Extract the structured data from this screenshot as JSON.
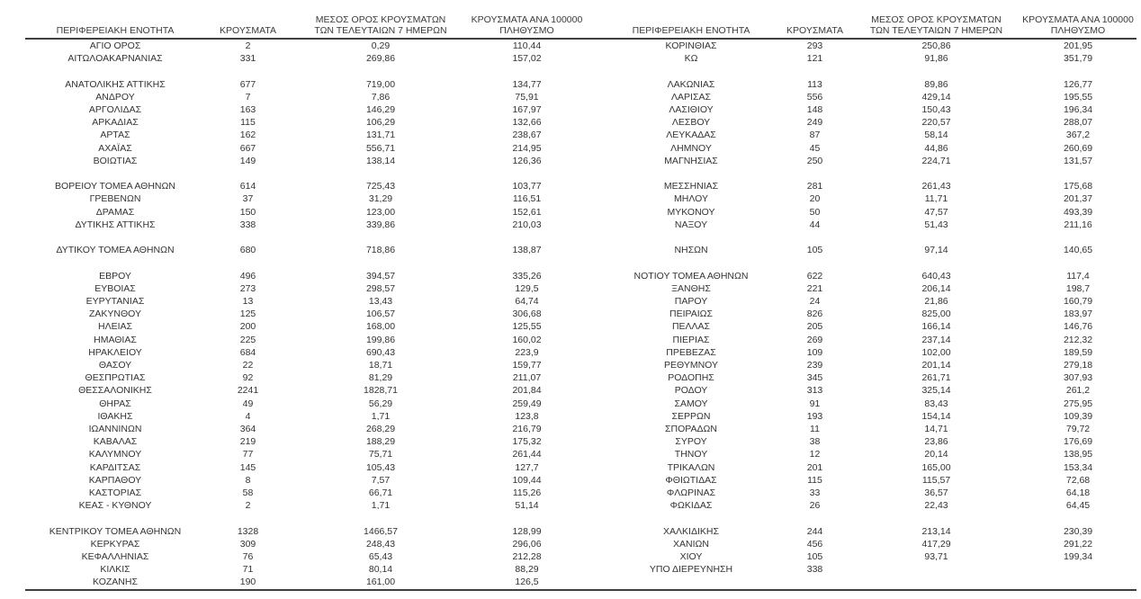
{
  "table": {
    "headers": {
      "region": "ΠΕΡΙΦΕΡΕΙΑΚΗ ΕΝΟΤΗΤΑ",
      "cases": "ΚΡΟΥΣΜΑΤΑ",
      "avg7_line1": "ΜΕΣΟΣ ΟΡΟΣ ΚΡΟΥΣΜΑΤΩΝ",
      "avg7_line2": "ΤΩΝ ΤΕΛΕΥΤΑΙΩΝ 7 ΗΜΕΡΩΝ",
      "per100k_line1": "ΚΡΟΥΣΜΑΤΑ ΑΝΑ 100000",
      "per100k_line2": "ΠΛΗΘΥΣΜΟ"
    },
    "rows": [
      {
        "l": [
          "ΑΓΙΟ ΟΡΟΣ",
          "2",
          "0,29",
          "110,44"
        ],
        "r": [
          "ΚΟΡΙΝΘΙΑΣ",
          "293",
          "250,86",
          "201,95"
        ]
      },
      {
        "l": [
          "ΑΙΤΩΛΟΑΚΑΡΝΑΝΙΑΣ",
          "331",
          "269,86",
          "157,02"
        ],
        "r": [
          "ΚΩ",
          "121",
          "91,86",
          "351,79"
        ]
      },
      {
        "l": null,
        "r": null
      },
      {
        "l": [
          "ΑΝΑΤΟΛΙΚΗΣ ΑΤΤΙΚΗΣ",
          "677",
          "719,00",
          "134,77"
        ],
        "r": [
          "ΛΑΚΩΝΙΑΣ",
          "113",
          "89,86",
          "126,77"
        ]
      },
      {
        "l": [
          "ΑΝΔΡΟΥ",
          "7",
          "7,86",
          "75,91"
        ],
        "r": [
          "ΛΑΡΙΣΑΣ",
          "556",
          "429,14",
          "195,55"
        ]
      },
      {
        "l": [
          "ΑΡΓΟΛΙΔΑΣ",
          "163",
          "146,29",
          "167,97"
        ],
        "r": [
          "ΛΑΣΙΘΙΟΥ",
          "148",
          "150,43",
          "196,34"
        ]
      },
      {
        "l": [
          "ΑΡΚΑΔΙΑΣ",
          "115",
          "106,29",
          "132,66"
        ],
        "r": [
          "ΛΕΣΒΟΥ",
          "249",
          "220,57",
          "288,07"
        ]
      },
      {
        "l": [
          "ΑΡΤΑΣ",
          "162",
          "131,71",
          "238,67"
        ],
        "r": [
          "ΛΕΥΚΑΔΑΣ",
          "87",
          "58,14",
          "367,2"
        ]
      },
      {
        "l": [
          "ΑΧΑΪΑΣ",
          "667",
          "556,71",
          "214,95"
        ],
        "r": [
          "ΛΗΜΝΟΥ",
          "45",
          "44,86",
          "260,69"
        ]
      },
      {
        "l": [
          "ΒΟΙΩΤΙΑΣ",
          "149",
          "138,14",
          "126,36"
        ],
        "r": [
          "ΜΑΓΝΗΣΙΑΣ",
          "250",
          "224,71",
          "131,57"
        ]
      },
      {
        "l": null,
        "r": null
      },
      {
        "l": [
          "ΒΟΡΕΙΟΥ ΤΟΜΕΑ ΑΘΗΝΩΝ",
          "614",
          "725,43",
          "103,77"
        ],
        "r": [
          "ΜΕΣΣΗΝΙΑΣ",
          "281",
          "261,43",
          "175,68"
        ]
      },
      {
        "l": [
          "ΓΡΕΒΕΝΩΝ",
          "37",
          "31,29",
          "116,51"
        ],
        "r": [
          "ΜΗΛΟΥ",
          "20",
          "11,71",
          "201,37"
        ]
      },
      {
        "l": [
          "ΔΡΑΜΑΣ",
          "150",
          "123,00",
          "152,61"
        ],
        "r": [
          "ΜΥΚΟΝΟΥ",
          "50",
          "47,57",
          "493,39"
        ]
      },
      {
        "l": [
          "ΔΥΤΙΚΗΣ ΑΤΤΙΚΗΣ",
          "338",
          "339,86",
          "210,03"
        ],
        "r": [
          "ΝΑΞΟΥ",
          "44",
          "51,43",
          "211,16"
        ]
      },
      {
        "l": null,
        "r": null
      },
      {
        "l": [
          "ΔΥΤΙΚΟΥ ΤΟΜΕΑ ΑΘΗΝΩΝ",
          "680",
          "718,86",
          "138,87"
        ],
        "r": [
          "ΝΗΣΩΝ",
          "105",
          "97,14",
          "140,65"
        ]
      },
      {
        "l": null,
        "r": null
      },
      {
        "l": [
          "ΕΒΡΟΥ",
          "496",
          "394,57",
          "335,26"
        ],
        "r": [
          "ΝΟΤΙΟΥ ΤΟΜΕΑ ΑΘΗΝΩΝ",
          "622",
          "640,43",
          "117,4"
        ]
      },
      {
        "l": [
          "ΕΥΒΟΙΑΣ",
          "273",
          "298,57",
          "129,5"
        ],
        "r": [
          "ΞΑΝΘΗΣ",
          "221",
          "206,14",
          "198,7"
        ]
      },
      {
        "l": [
          "ΕΥΡΥΤΑΝΙΑΣ",
          "13",
          "13,43",
          "64,74"
        ],
        "r": [
          "ΠΑΡΟΥ",
          "24",
          "21,86",
          "160,79"
        ]
      },
      {
        "l": [
          "ΖΑΚΥΝΘΟΥ",
          "125",
          "106,57",
          "306,68"
        ],
        "r": [
          "ΠΕΙΡΑΙΩΣ",
          "826",
          "825,00",
          "183,97"
        ]
      },
      {
        "l": [
          "ΗΛΕΙΑΣ",
          "200",
          "168,00",
          "125,55"
        ],
        "r": [
          "ΠΕΛΛΑΣ",
          "205",
          "166,14",
          "146,76"
        ]
      },
      {
        "l": [
          "ΗΜΑΘΙΑΣ",
          "225",
          "199,86",
          "160,02"
        ],
        "r": [
          "ΠΙΕΡΙΑΣ",
          "269",
          "237,14",
          "212,32"
        ]
      },
      {
        "l": [
          "ΗΡΑΚΛΕΙΟΥ",
          "684",
          "690,43",
          "223,9"
        ],
        "r": [
          "ΠΡΕΒΕΖΑΣ",
          "109",
          "102,00",
          "189,59"
        ]
      },
      {
        "l": [
          "ΘΑΣΟΥ",
          "22",
          "18,71",
          "159,77"
        ],
        "r": [
          "ΡΕΘΥΜΝΟΥ",
          "239",
          "201,14",
          "279,18"
        ]
      },
      {
        "l": [
          "ΘΕΣΠΡΩΤΙΑΣ",
          "92",
          "81,29",
          "211,07"
        ],
        "r": [
          "ΡΟΔΟΠΗΣ",
          "345",
          "261,71",
          "307,93"
        ]
      },
      {
        "l": [
          "ΘΕΣΣΑΛΟΝΙΚΗΣ",
          "2241",
          "1828,71",
          "201,84"
        ],
        "r": [
          "ΡΟΔΟΥ",
          "313",
          "325,14",
          "261,2"
        ]
      },
      {
        "l": [
          "ΘΗΡΑΣ",
          "49",
          "56,29",
          "259,49"
        ],
        "r": [
          "ΣΑΜΟΥ",
          "91",
          "83,43",
          "275,95"
        ]
      },
      {
        "l": [
          "ΙΘΑΚΗΣ",
          "4",
          "1,71",
          "123,8"
        ],
        "r": [
          "ΣΕΡΡΩΝ",
          "193",
          "154,14",
          "109,39"
        ]
      },
      {
        "l": [
          "ΙΩΑΝΝΙΝΩΝ",
          "364",
          "268,29",
          "216,79"
        ],
        "r": [
          "ΣΠΟΡΑΔΩΝ",
          "11",
          "14,71",
          "79,72"
        ]
      },
      {
        "l": [
          "ΚΑΒΑΛΑΣ",
          "219",
          "188,29",
          "175,32"
        ],
        "r": [
          "ΣΥΡΟΥ",
          "38",
          "23,86",
          "176,69"
        ]
      },
      {
        "l": [
          "ΚΑΛΥΜΝΟΥ",
          "77",
          "75,71",
          "261,44"
        ],
        "r": [
          "ΤΗΝΟΥ",
          "12",
          "20,14",
          "138,95"
        ]
      },
      {
        "l": [
          "ΚΑΡΔΙΤΣΑΣ",
          "145",
          "105,43",
          "127,7"
        ],
        "r": [
          "ΤΡΙΚΑΛΩΝ",
          "201",
          "165,00",
          "153,34"
        ]
      },
      {
        "l": [
          "ΚΑΡΠΑΘΟΥ",
          "8",
          "7,57",
          "109,44"
        ],
        "r": [
          "ΦΘΙΩΤΙΔΑΣ",
          "115",
          "115,57",
          "72,68"
        ]
      },
      {
        "l": [
          "ΚΑΣΤΟΡΙΑΣ",
          "58",
          "66,71",
          "115,26"
        ],
        "r": [
          "ΦΛΩΡΙΝΑΣ",
          "33",
          "36,57",
          "64,18"
        ]
      },
      {
        "l": [
          "ΚΕΑΣ - ΚΥΘΝΟΥ",
          "2",
          "1,71",
          "51,14"
        ],
        "r": [
          "ΦΩΚΙΔΑΣ",
          "26",
          "22,43",
          "64,45"
        ]
      },
      {
        "l": null,
        "r": null
      },
      {
        "l": [
          "ΚΕΝΤΡΙΚΟΥ ΤΟΜΕΑ ΑΘΗΝΩΝ",
          "1328",
          "1466,57",
          "128,99"
        ],
        "r": [
          "ΧΑΛΚΙΔΙΚΗΣ",
          "244",
          "213,14",
          "230,39"
        ]
      },
      {
        "l": [
          "ΚΕΡΚΥΡΑΣ",
          "309",
          "248,43",
          "296,06"
        ],
        "r": [
          "ΧΑΝΙΩΝ",
          "456",
          "417,29",
          "291,22"
        ]
      },
      {
        "l": [
          "ΚΕΦΑΛΛΗΝΙΑΣ",
          "76",
          "65,43",
          "212,28"
        ],
        "r": [
          "ΧΙΟΥ",
          "105",
          "93,71",
          "199,34"
        ]
      },
      {
        "l": [
          "ΚΙΛΚΙΣ",
          "71",
          "80,14",
          "88,29"
        ],
        "r": [
          "ΥΠΟ ΔΙΕΡΕΥΝΗΣΗ",
          "338",
          "",
          ""
        ]
      },
      {
        "l": [
          "ΚΟΖΑΝΗΣ",
          "190",
          "161,00",
          "126,5"
        ],
        "r": null
      }
    ]
  }
}
